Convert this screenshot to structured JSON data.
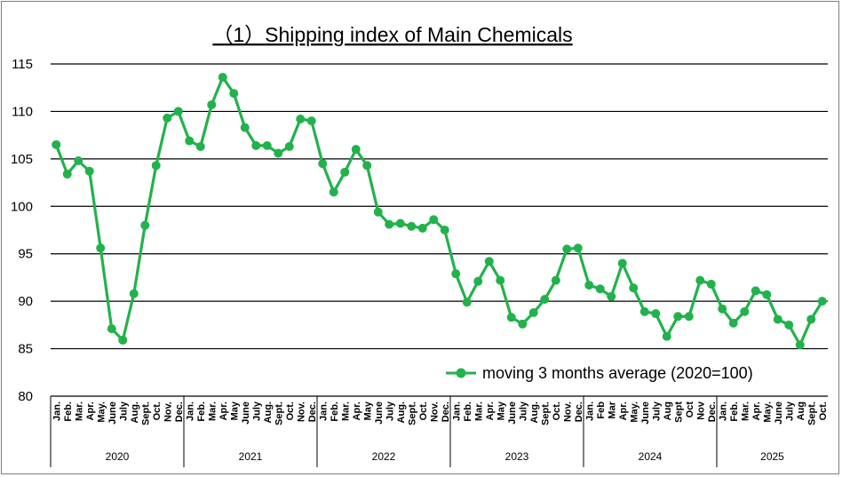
{
  "chart_data": {
    "type": "line",
    "title": "（1）Shipping index of Main Chemicals",
    "xlabel": "",
    "ylabel": "",
    "ylim": [
      80,
      115
    ],
    "yticks": [
      80,
      85,
      90,
      95,
      100,
      105,
      110,
      115
    ],
    "grid": true,
    "legend_position": "bottom-right",
    "colors": {
      "series": "#22b24c",
      "grid": "#000000",
      "axis": "#000000"
    },
    "years": [
      {
        "label": "2020",
        "months": [
          "Jan.",
          "Feb.",
          "Mar.",
          "Apr.",
          "May.",
          "June",
          "July",
          "Aug.",
          "Sept.",
          "Oct.",
          "Nov.",
          "Dec."
        ]
      },
      {
        "label": "2021",
        "months": [
          "Jan.",
          "Feb.",
          "Mar.",
          "Apr.",
          "May",
          "June",
          "July",
          "Aug.",
          "Sept.",
          "Oct.",
          "Nov.",
          "Dec."
        ]
      },
      {
        "label": "2022",
        "months": [
          "Jan.",
          "Feb.",
          "Mar.",
          "Apr.",
          "May",
          "June",
          "July",
          "Aug.",
          "Sept.",
          "Oct.",
          "Nov.",
          "Dec."
        ]
      },
      {
        "label": "2023",
        "months": [
          "Jan.",
          "Feb.",
          "Mar.",
          "Apr.",
          "May",
          "June",
          "July",
          "Aug.",
          "Sept.",
          "Oct.",
          "Nov.",
          "Dec."
        ]
      },
      {
        "label": "2024",
        "months": [
          "Jan.",
          "Feb",
          "Mar",
          "Apr.",
          "May.",
          "June",
          "July",
          "Aug",
          "Sept",
          "Oct",
          "Nov",
          "Dec."
        ]
      },
      {
        "label": "2025",
        "months": [
          "Jan.",
          "Feb.",
          "Mar.",
          "Apr.",
          "May.",
          "June",
          "July",
          "Aug",
          "Sept.",
          "Oct."
        ]
      }
    ],
    "series": [
      {
        "name": "moving 3 months average (2020=100)",
        "values": [
          106.5,
          103.4,
          104.8,
          103.7,
          95.6,
          87.1,
          85.9,
          90.8,
          98.0,
          104.3,
          109.3,
          110.0,
          106.9,
          106.3,
          110.7,
          113.6,
          111.9,
          108.3,
          106.4,
          106.4,
          105.6,
          106.3,
          109.2,
          109.0,
          104.5,
          101.5,
          103.6,
          106.0,
          104.3,
          99.4,
          98.1,
          98.2,
          97.9,
          97.7,
          98.6,
          97.5,
          92.9,
          89.9,
          92.1,
          94.2,
          92.2,
          88.3,
          87.6,
          88.8,
          90.2,
          92.2,
          95.5,
          95.6,
          91.7,
          91.3,
          90.5,
          94.0,
          91.4,
          88.9,
          88.7,
          86.3,
          88.4,
          88.4,
          92.2,
          91.8,
          89.2,
          87.7,
          88.9,
          91.1,
          90.7,
          88.1,
          87.5,
          85.4,
          88.1,
          90.0
        ]
      }
    ]
  }
}
